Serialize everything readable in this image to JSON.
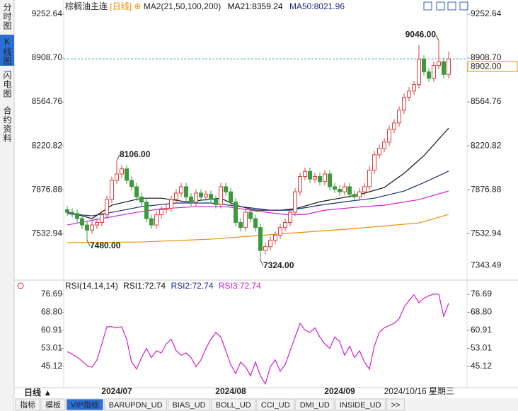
{
  "header": {
    "symbol": "棕榈油主连",
    "period": "[日线]"
  },
  "sidebar": [
    "分时图",
    "K线图",
    "闪电图",
    "合约资料"
  ],
  "sidebar_active": 1,
  "chart_data": [
    {
      "type": "candlestick",
      "title": "MA2(21,50,100,200)",
      "categories": [
        null,
        null,
        null,
        null,
        null,
        null,
        null,
        null,
        null,
        null,
        "2024/07",
        null,
        null,
        null,
        null,
        null,
        null,
        null,
        null,
        null,
        null,
        null,
        null,
        null,
        null,
        null,
        null,
        null,
        null,
        null,
        null,
        null,
        null,
        "2024/08",
        null,
        null,
        null,
        null,
        null,
        null,
        null,
        null,
        null,
        null,
        null,
        null,
        null,
        null,
        null,
        null,
        null,
        null,
        null,
        null,
        null,
        "2024/09",
        null,
        null,
        null,
        null,
        null,
        null,
        null,
        null,
        null,
        null,
        null,
        null,
        null,
        null,
        null,
        null,
        null,
        null,
        null,
        null,
        null,
        null
      ],
      "cursor_label": "2024/10/16 星期三",
      "open": [
        7720,
        7700,
        7690,
        7650,
        7600,
        7560,
        7600,
        7620,
        7680,
        7800,
        7950,
        8000,
        8040,
        7950,
        7900,
        7820,
        7780,
        7650,
        7600,
        7680,
        7720,
        7730,
        7800,
        7850,
        7900,
        7820,
        7780,
        7850,
        7820,
        7840,
        7800,
        7760,
        7900,
        7860,
        7780,
        7620,
        7580,
        7700,
        7650,
        7580,
        7400,
        7430,
        7480,
        7520,
        7580,
        7620,
        7700,
        7860,
        7980,
        8020,
        7960,
        7980,
        7940,
        8000,
        7900,
        7880,
        7860,
        7900,
        7840,
        7820,
        7860,
        7900,
        8030,
        8150,
        8200,
        8250,
        8350,
        8400,
        8500,
        8600,
        8650,
        8700,
        8900,
        8800,
        8750,
        8850,
        8880,
        8780
      ],
      "high": [
        7750,
        7730,
        7720,
        7680,
        7630,
        7630,
        7650,
        7710,
        7830,
        7980,
        8106,
        8070,
        8070,
        7980,
        7930,
        7850,
        7810,
        7680,
        7710,
        7750,
        7760,
        7830,
        7880,
        7930,
        7930,
        7850,
        7880,
        7880,
        7870,
        7870,
        7830,
        7930,
        7930,
        7890,
        7810,
        7650,
        7730,
        7730,
        7680,
        7610,
        7460,
        7510,
        7550,
        7610,
        7650,
        7730,
        7890,
        8010,
        8050,
        8050,
        8010,
        8010,
        8030,
        8030,
        7930,
        7910,
        7930,
        7930,
        7870,
        7890,
        7930,
        8060,
        8180,
        8230,
        8280,
        8380,
        8430,
        8530,
        8630,
        8680,
        8730,
        9010,
        8930,
        8830,
        8880,
        9046,
        8910,
        8960
      ],
      "low": [
        7670,
        7660,
        7620,
        7570,
        7480,
        7530,
        7570,
        7590,
        7650,
        7770,
        7920,
        7970,
        7920,
        7870,
        7790,
        7750,
        7620,
        7570,
        7570,
        7650,
        7690,
        7700,
        7770,
        7820,
        7790,
        7750,
        7750,
        7790,
        7790,
        7770,
        7730,
        7730,
        7830,
        7750,
        7590,
        7550,
        7550,
        7620,
        7550,
        7324,
        7370,
        7400,
        7450,
        7490,
        7550,
        7590,
        7670,
        7830,
        7950,
        7930,
        7930,
        7910,
        7910,
        7870,
        7850,
        7830,
        7830,
        7810,
        7790,
        7790,
        7830,
        7870,
        8000,
        8120,
        8170,
        8220,
        8320,
        8370,
        8470,
        8570,
        8620,
        8670,
        8770,
        8720,
        8720,
        8820,
        8750,
        8750
      ],
      "close": [
        7700,
        7690,
        7650,
        7600,
        7560,
        7600,
        7620,
        7680,
        7800,
        7950,
        8000,
        8040,
        7950,
        7900,
        7820,
        7780,
        7650,
        7600,
        7680,
        7720,
        7730,
        7800,
        7850,
        7900,
        7820,
        7780,
        7850,
        7820,
        7840,
        7800,
        7760,
        7900,
        7860,
        7780,
        7620,
        7580,
        7700,
        7650,
        7580,
        7400,
        7430,
        7480,
        7520,
        7580,
        7620,
        7700,
        7860,
        7980,
        8020,
        7960,
        7980,
        7940,
        8000,
        7900,
        7880,
        7860,
        7900,
        7840,
        7820,
        7860,
        7900,
        8030,
        8150,
        8200,
        8250,
        8350,
        8400,
        8500,
        8600,
        8650,
        8700,
        8900,
        8800,
        8750,
        8850,
        8880,
        8780,
        8902
      ],
      "up_color": "#e03c3c",
      "down_color": "#3c9a3c",
      "ylim": [
        7190,
        9308
      ],
      "yticks": [
        9252.64,
        {
          "value": 8908.7,
          "label": "8908.70"
        },
        8564.76,
        8220.82,
        7876.88,
        7532.94
      ],
      "last_price": 8902,
      "last_price_label": "8902.00",
      "last_color": "#f08c00",
      "right_note": {
        "value": 7343.49,
        "label": "7343.49"
      },
      "annotations": [
        {
          "at": 75,
          "value": 9046,
          "label": "9046.00",
          "color": "#d03030"
        },
        {
          "at": 10,
          "value": 8106,
          "label": "8106.00",
          "color": "#d03030"
        },
        {
          "at": 4,
          "value": 7480,
          "label": "7480.00",
          "color": "#3c9a3c"
        },
        {
          "at": 39,
          "value": 7324,
          "label": "7324.00",
          "color": "#3c9a3c"
        }
      ],
      "ma": [
        {
          "label": "MA21:8359.24",
          "color": "#111111",
          "x": [
            0,
            3,
            5,
            9,
            15,
            19,
            24,
            31,
            34,
            38,
            43,
            46,
            51,
            55,
            59,
            64,
            68,
            72,
            77
          ],
          "values": [
            7699,
            7672,
            7650,
            7755,
            7810,
            7810,
            7782,
            7810,
            7755,
            7716,
            7716,
            7727,
            7782,
            7810,
            7838,
            7894,
            8005,
            8143,
            8359.24
          ]
        },
        {
          "label": "MA50:8021.96",
          "color": "#1a2a80",
          "x": [
            0,
            5,
            9,
            15,
            22,
            29,
            35,
            41,
            45,
            51,
            56,
            62,
            68,
            72,
            77
          ],
          "values": [
            7688,
            7672,
            7699,
            7744,
            7772,
            7772,
            7744,
            7716,
            7716,
            7755,
            7782,
            7810,
            7866,
            7932,
            8021.96
          ]
        },
        {
          "color": "#d020d0",
          "x": [
            0,
            6,
            14,
            19,
            26,
            32,
            38,
            44,
            48,
            52,
            58,
            64,
            71,
            77
          ],
          "values": [
            7600,
            7644,
            7699,
            7727,
            7744,
            7744,
            7710,
            7682,
            7682,
            7716,
            7738,
            7755,
            7799,
            7866
          ]
        },
        {
          "color": "#f08c00",
          "x": [
            0,
            15,
            29,
            44,
            58,
            71,
            77
          ],
          "values": [
            7461,
            7467,
            7489,
            7533,
            7572,
            7616,
            7683
          ]
        }
      ]
    },
    {
      "type": "line",
      "title": "RSI(14,14,14)",
      "legend": [
        {
          "label": "RSI1:72.74",
          "color": "#111111"
        },
        {
          "label": "RSI2:72.74",
          "color": "#1a2a80"
        },
        {
          "label": "RSI3:72.74",
          "color": "#d020d0"
        }
      ],
      "values": [
        51.6,
        50.5,
        49.2,
        47.5,
        45.5,
        44.8,
        48,
        55,
        62.5,
        62.5,
        62,
        62.5,
        57,
        47,
        44,
        49,
        53,
        49,
        52,
        51,
        55,
        57,
        52,
        50,
        51,
        49,
        45,
        48,
        53,
        57,
        60,
        58,
        52,
        46,
        42,
        47,
        45,
        41,
        47,
        41,
        37.5,
        45,
        48,
        43,
        46,
        52,
        58,
        64,
        61,
        60,
        62,
        58,
        55,
        53,
        58,
        56,
        50,
        54,
        49,
        52,
        47,
        44,
        54,
        60,
        62,
        63,
        64,
        66,
        71,
        74,
        76.5,
        73,
        75,
        76,
        76.8,
        76.8,
        67,
        72.74
      ],
      "color": "#d020d0",
      "ylim": [
        36.77,
        80.09
      ],
      "yticks": [
        76.69,
        {
          "value": 68.8,
          "label": "68.80"
        },
        60.91,
        53.01,
        45.12
      ]
    }
  ],
  "bottom": {
    "period": "日线 ▲",
    "tabs": [
      "指标",
      "模板",
      "VIP指标",
      "BARUPDN_UD",
      "BIAS_UD",
      "BOLL_UD",
      "CCI_UD",
      "DMI_UD",
      "INSIDE_UD",
      ">>"
    ],
    "active_tab": 2
  }
}
